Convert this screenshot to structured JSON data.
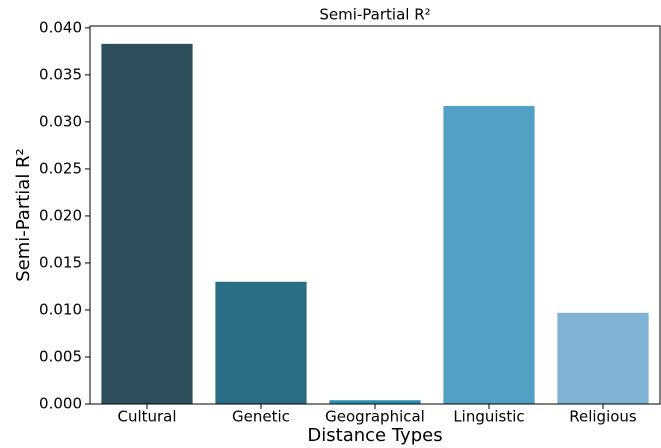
{
  "chart_data": {
    "type": "bar",
    "title": "Semi-Partial R²",
    "xlabel": "Distance Types",
    "ylabel": "Semi-Partial R²",
    "categories": [
      "Cultural",
      "Genetic",
      "Geographical",
      "Linguistic",
      "Religious"
    ],
    "values": [
      0.0383,
      0.013,
      0.0004,
      0.0317,
      0.0097
    ],
    "colors": [
      "#2d4f5c",
      "#2a6e86",
      "#2a8eb3",
      "#52a1c5",
      "#80b2d6"
    ],
    "ylim": [
      0,
      0.0402
    ],
    "yticks": [
      {
        "value": 0,
        "label": "0.000"
      },
      {
        "value": 0.005,
        "label": "0.005"
      },
      {
        "value": 0.01,
        "label": "0.010"
      },
      {
        "value": 0.015,
        "label": "0.015"
      },
      {
        "value": 0.02,
        "label": "0.020"
      },
      {
        "value": 0.025,
        "label": "0.025"
      },
      {
        "value": 0.03,
        "label": "0.030"
      },
      {
        "value": 0.035,
        "label": "0.035"
      },
      {
        "value": 0.04,
        "label": "0.040"
      }
    ]
  }
}
